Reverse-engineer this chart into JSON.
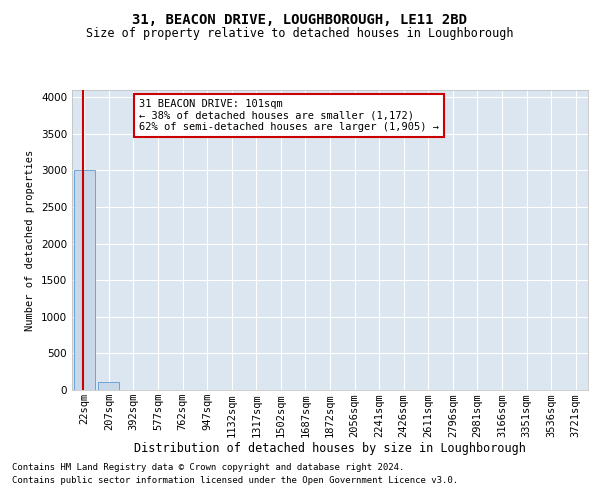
{
  "title1": "31, BEACON DRIVE, LOUGHBOROUGH, LE11 2BD",
  "title2": "Size of property relative to detached houses in Loughborough",
  "xlabel": "Distribution of detached houses by size in Loughborough",
  "ylabel": "Number of detached properties",
  "annotation_title": "31 BEACON DRIVE: 101sqm",
  "annotation_line2": "← 38% of detached houses are smaller (1,172)",
  "annotation_line3": "62% of semi-detached houses are larger (1,905) →",
  "footer1": "Contains HM Land Registry data © Crown copyright and database right 2024.",
  "footer2": "Contains public sector information licensed under the Open Government Licence v3.0.",
  "categories": [
    "22sqm",
    "207sqm",
    "392sqm",
    "577sqm",
    "762sqm",
    "947sqm",
    "1132sqm",
    "1317sqm",
    "1502sqm",
    "1687sqm",
    "1872sqm",
    "2056sqm",
    "2241sqm",
    "2426sqm",
    "2611sqm",
    "2796sqm",
    "2981sqm",
    "3166sqm",
    "3351sqm",
    "3536sqm",
    "3721sqm"
  ],
  "values": [
    3000,
    105,
    5,
    2,
    1,
    1,
    1,
    0,
    0,
    0,
    0,
    0,
    0,
    0,
    0,
    0,
    0,
    0,
    0,
    0,
    0
  ],
  "bar_color": "#c8d8e8",
  "bar_edge_color": "#5b9bd5",
  "marker_color": "#cc0000",
  "annotation_box_color": "#cc0000",
  "background_color": "#ffffff",
  "plot_bg_color": "#dce6f0",
  "grid_color": "#ffffff",
  "ylim": [
    0,
    4100
  ],
  "yticks": [
    0,
    500,
    1000,
    1500,
    2000,
    2500,
    3000,
    3500,
    4000
  ],
  "title1_fontsize": 10,
  "title2_fontsize": 8.5,
  "xlabel_fontsize": 8.5,
  "ylabel_fontsize": 7.5,
  "tick_fontsize": 7.5,
  "annotation_fontsize": 7.5,
  "footer_fontsize": 6.5
}
